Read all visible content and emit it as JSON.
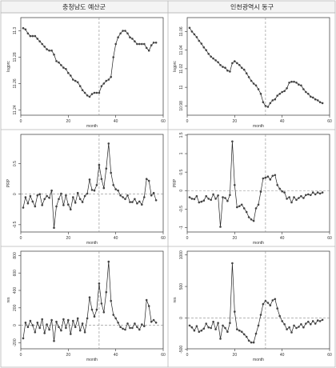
{
  "headers": [
    "충청남도 예산군",
    "인천광역시 동구"
  ],
  "chart_data": [
    {
      "type": "line",
      "xlabel": "month",
      "ylabel": "logprc",
      "xlim": [
        0,
        60
      ],
      "ylim": [
        11.236,
        11.31
      ],
      "xticks": [
        0,
        20,
        40,
        60
      ],
      "yticks": [
        11.24,
        11.26,
        11.28,
        11.3
      ],
      "vline": 33,
      "x": [
        1,
        2,
        3,
        4,
        5,
        6,
        7,
        8,
        9,
        10,
        11,
        12,
        13,
        14,
        15,
        16,
        17,
        18,
        19,
        20,
        21,
        22,
        23,
        24,
        25,
        26,
        27,
        28,
        29,
        30,
        31,
        32,
        33,
        34,
        35,
        36,
        37,
        38,
        39,
        40,
        41,
        42,
        43,
        44,
        45,
        46,
        47,
        48,
        49,
        50,
        51,
        52,
        53,
        54,
        55,
        56,
        57
      ],
      "y": [
        11.302,
        11.301,
        11.298,
        11.296,
        11.296,
        11.296,
        11.294,
        11.292,
        11.29,
        11.288,
        11.286,
        11.285,
        11.285,
        11.282,
        11.277,
        11.276,
        11.274,
        11.272,
        11.271,
        11.268,
        11.266,
        11.263,
        11.262,
        11.261,
        11.258,
        11.255,
        11.253,
        11.251,
        11.25,
        11.252,
        11.253,
        11.253,
        11.253,
        11.258,
        11.26,
        11.262,
        11.263,
        11.265,
        11.28,
        11.29,
        11.295,
        11.298,
        11.3,
        11.3,
        11.298,
        11.295,
        11.294,
        11.292,
        11.29,
        11.29,
        11.29,
        11.29,
        11.287,
        11.285,
        11.289,
        11.291,
        11.291
      ]
    },
    {
      "type": "line",
      "xlabel": "month",
      "ylabel": "logprc",
      "xlim": [
        0,
        60
      ],
      "ylim": [
        10.97,
        11.075
      ],
      "xticks": [
        0,
        20,
        40,
        60
      ],
      "yticks": [
        10.98,
        11,
        11.02,
        11.04,
        11.06
      ],
      "vline": 33,
      "x": [
        1,
        2,
        3,
        4,
        5,
        6,
        7,
        8,
        9,
        10,
        11,
        12,
        13,
        14,
        15,
        16,
        17,
        18,
        19,
        20,
        21,
        22,
        23,
        24,
        25,
        26,
        27,
        28,
        29,
        30,
        31,
        32,
        33,
        34,
        35,
        36,
        37,
        38,
        39,
        40,
        41,
        42,
        43,
        44,
        45,
        46,
        47,
        48,
        49,
        50,
        51,
        52,
        53,
        54,
        55,
        56,
        57
      ],
      "y": [
        11.064,
        11.06,
        11.057,
        11.054,
        11.05,
        11.047,
        11.043,
        11.04,
        11.036,
        11.033,
        11.031,
        11.029,
        11.027,
        11.024,
        11.022,
        11.021,
        11.018,
        11.017,
        11.026,
        11.028,
        11.026,
        11.024,
        11.021,
        11.019,
        11.015,
        11.011,
        11.007,
        11.004,
        11.002,
        10.998,
        10.993,
        10.984,
        10.98,
        10.979,
        10.983,
        10.986,
        10.987,
        10.991,
        10.993,
        10.995,
        10.996,
        10.999,
        11.005,
        11.006,
        11.006,
        11.005,
        11.003,
        11.002,
        10.998,
        10.995,
        10.993,
        10.99,
        10.989,
        10.987,
        10.986,
        10.984,
        10.983
      ]
    },
    {
      "type": "line",
      "xlabel": "month",
      "ylabel": "PRP",
      "xlim": [
        0,
        60
      ],
      "ylim": [
        -0.62,
        0.98
      ],
      "xticks": [
        0,
        20,
        40,
        60
      ],
      "yticks": [
        -0.5,
        0,
        0.5
      ],
      "vline": 33,
      "hline": 0,
      "x": [
        1,
        2,
        3,
        4,
        5,
        6,
        7,
        8,
        9,
        10,
        11,
        12,
        13,
        14,
        15,
        16,
        17,
        18,
        19,
        20,
        21,
        22,
        23,
        24,
        25,
        26,
        27,
        28,
        29,
        30,
        31,
        32,
        33,
        34,
        35,
        36,
        37,
        38,
        39,
        40,
        41,
        42,
        43,
        44,
        45,
        46,
        47,
        48,
        49,
        50,
        51,
        52,
        53,
        54,
        55,
        56,
        57
      ],
      "y": [
        -0.22,
        -0.05,
        -0.15,
        -0.03,
        -0.12,
        -0.2,
        -0.02,
        0,
        -0.18,
        -0.08,
        -0.03,
        -0.06,
        0.06,
        -0.55,
        -0.2,
        -0.08,
        0.01,
        -0.18,
        -0.02,
        -0.17,
        -0.25,
        -0.05,
        -0.14,
        0.02,
        -0.08,
        -0.13,
        -0.03,
        0.01,
        0.24,
        0.07,
        0.06,
        0.15,
        0.48,
        0.25,
        0.1,
        0.42,
        0.83,
        0.35,
        0.15,
        0.08,
        0.06,
        -0.02,
        -0.05,
        -0.08,
        -0.02,
        -0.13,
        -0.13,
        -0.08,
        -0.15,
        -0.12,
        -0.17,
        -0.05,
        0.25,
        0.22,
        -0.02,
        0.02,
        -0.1
      ]
    },
    {
      "type": "line",
      "xlabel": "month",
      "ylabel": "PRP",
      "xlim": [
        0,
        60
      ],
      "ylim": [
        -1.12,
        1.52
      ],
      "xticks": [
        0,
        20,
        40,
        60
      ],
      "yticks": [
        -1,
        -0.5,
        0,
        0.5,
        1,
        1.5
      ],
      "vline": 33,
      "hline": 0,
      "x": [
        1,
        2,
        3,
        4,
        5,
        6,
        7,
        8,
        9,
        10,
        11,
        12,
        13,
        14,
        15,
        16,
        17,
        18,
        19,
        20,
        21,
        22,
        23,
        24,
        25,
        26,
        27,
        28,
        29,
        30,
        31,
        32,
        33,
        34,
        35,
        36,
        37,
        38,
        39,
        40,
        41,
        42,
        43,
        44,
        45,
        46,
        47,
        48,
        49,
        50,
        51,
        52,
        53,
        54,
        55,
        56,
        57
      ],
      "y": [
        -0.18,
        -0.22,
        -0.23,
        -0.15,
        -0.32,
        -0.3,
        -0.27,
        -0.15,
        -0.22,
        -0.25,
        -0.1,
        -0.22,
        -0.13,
        -0.98,
        -0.18,
        -0.2,
        -0.28,
        -0.12,
        1.33,
        0.15,
        -0.45,
        -0.42,
        -0.38,
        -0.48,
        -0.58,
        -0.72,
        -0.78,
        -0.82,
        -0.48,
        -0.38,
        -0.03,
        0.33,
        0.35,
        0.38,
        0.3,
        0.4,
        0.42,
        0.15,
        0.05,
        -0.02,
        -0.05,
        -0.22,
        -0.18,
        -0.32,
        -0.18,
        -0.25,
        -0.2,
        -0.15,
        -0.2,
        -0.12,
        -0.1,
        -0.12,
        -0.05,
        -0.1,
        -0.05,
        -0.08,
        -0.05
      ]
    },
    {
      "type": "line",
      "xlabel": "month",
      "ylabel": "res",
      "xlim": [
        0,
        60
      ],
      "ylim": [
        -270,
        850
      ],
      "xticks": [
        0,
        20,
        40,
        60
      ],
      "yticks": [
        -200,
        0,
        200,
        400,
        600,
        800
      ],
      "vline": 33,
      "hline": 0,
      "x": [
        1,
        2,
        3,
        4,
        5,
        6,
        7,
        8,
        9,
        10,
        11,
        12,
        13,
        14,
        15,
        16,
        17,
        18,
        19,
        20,
        21,
        22,
        23,
        24,
        25,
        26,
        27,
        28,
        29,
        30,
        31,
        32,
        33,
        34,
        35,
        36,
        37,
        38,
        39,
        40,
        41,
        42,
        43,
        44,
        45,
        46,
        47,
        48,
        49,
        50,
        51,
        52,
        53,
        54,
        55,
        56,
        57
      ],
      "y": [
        -150,
        30,
        -20,
        50,
        0,
        -80,
        30,
        -30,
        70,
        -90,
        10,
        -50,
        60,
        -180,
        40,
        -20,
        -60,
        70,
        -30,
        60,
        -100,
        50,
        -20,
        80,
        -60,
        20,
        -80,
        80,
        320,
        180,
        100,
        180,
        480,
        250,
        150,
        380,
        730,
        280,
        120,
        80,
        30,
        -20,
        -40,
        -50,
        20,
        -30,
        -30,
        20,
        -20,
        -50,
        10,
        -10,
        290,
        220,
        40,
        60,
        30
      ]
    },
    {
      "type": "line",
      "xlabel": "month",
      "ylabel": "res",
      "xlim": [
        0,
        60
      ],
      "ylim": [
        -490,
        1060
      ],
      "xticks": [
        0,
        20,
        40,
        60
      ],
      "yticks": [
        -500,
        0,
        500,
        1000
      ],
      "vline": 33,
      "hline": 0,
      "x": [
        1,
        2,
        3,
        4,
        5,
        6,
        7,
        8,
        9,
        10,
        11,
        12,
        13,
        14,
        15,
        16,
        17,
        18,
        19,
        20,
        21,
        22,
        23,
        24,
        25,
        26,
        27,
        28,
        29,
        30,
        31,
        32,
        33,
        34,
        35,
        36,
        37,
        38,
        39,
        40,
        41,
        42,
        43,
        44,
        45,
        46,
        47,
        48,
        49,
        50,
        51,
        52,
        53,
        54,
        55,
        56,
        57
      ],
      "y": [
        -120,
        -150,
        -200,
        -130,
        -220,
        -200,
        -170,
        -90,
        -150,
        -160,
        -60,
        -180,
        -80,
        -330,
        -120,
        -160,
        -220,
        -80,
        870,
        100,
        -180,
        -200,
        -220,
        -260,
        -300,
        -360,
        -390,
        -390,
        -250,
        -120,
        50,
        220,
        270,
        240,
        200,
        280,
        300,
        150,
        30,
        -50,
        -100,
        -180,
        -150,
        -230,
        -120,
        -160,
        -140,
        -100,
        -150,
        -90,
        -60,
        -100,
        -50,
        -90,
        -40,
        -50,
        -30
      ]
    }
  ]
}
